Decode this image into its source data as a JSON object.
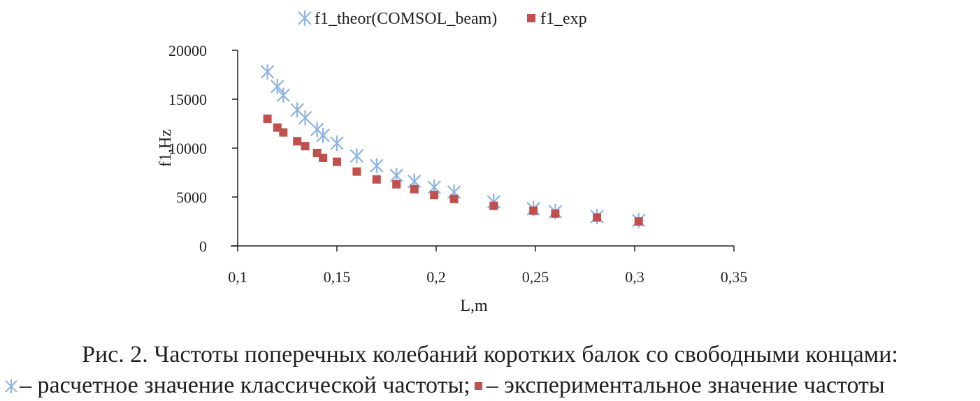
{
  "chart_data": {
    "type": "scatter",
    "xlabel": "L,m",
    "ylabel": "f1,Hz",
    "xlim": [
      0.1,
      0.35
    ],
    "ylim": [
      0,
      20000
    ],
    "x_ticks": [
      "0,1",
      "0,15",
      "0,2",
      "0,25",
      "0,3",
      "0,35"
    ],
    "y_ticks": [
      "0",
      "5000",
      "10000",
      "15000",
      "20000"
    ],
    "legend_position": "top",
    "grid": false,
    "series": [
      {
        "name": "f1_theor(COMSOL_beam)",
        "marker": "star",
        "color": "#8eb4e3",
        "x": [
          0.115,
          0.12,
          0.123,
          0.13,
          0.134,
          0.14,
          0.143,
          0.15,
          0.16,
          0.17,
          0.18,
          0.189,
          0.199,
          0.209,
          0.229,
          0.249,
          0.26,
          0.281,
          0.302
        ],
        "y": [
          17800,
          16300,
          15400,
          13900,
          13100,
          11900,
          11300,
          10500,
          9200,
          8200,
          7200,
          6600,
          6000,
          5500,
          4500,
          3800,
          3500,
          3000,
          2600
        ]
      },
      {
        "name": "f1_exp",
        "marker": "square",
        "color": "#c0504d",
        "x": [
          0.115,
          0.12,
          0.123,
          0.13,
          0.134,
          0.14,
          0.143,
          0.15,
          0.16,
          0.17,
          0.18,
          0.189,
          0.199,
          0.209,
          0.229,
          0.249,
          0.26,
          0.281,
          0.302
        ],
        "y": [
          13000,
          12100,
          11600,
          10700,
          10200,
          9500,
          9000,
          8600,
          7600,
          6800,
          6300,
          5800,
          5200,
          4800,
          4100,
          3600,
          3300,
          2900,
          2500
        ]
      }
    ]
  },
  "caption": {
    "line1": "Рис. 2. Частоты поперечных колебаний коротких балок со свободными концами:",
    "line2_part1": "– расчетное значение классической частоты;",
    "line2_part2": "– экспериментальное значение частоты"
  }
}
